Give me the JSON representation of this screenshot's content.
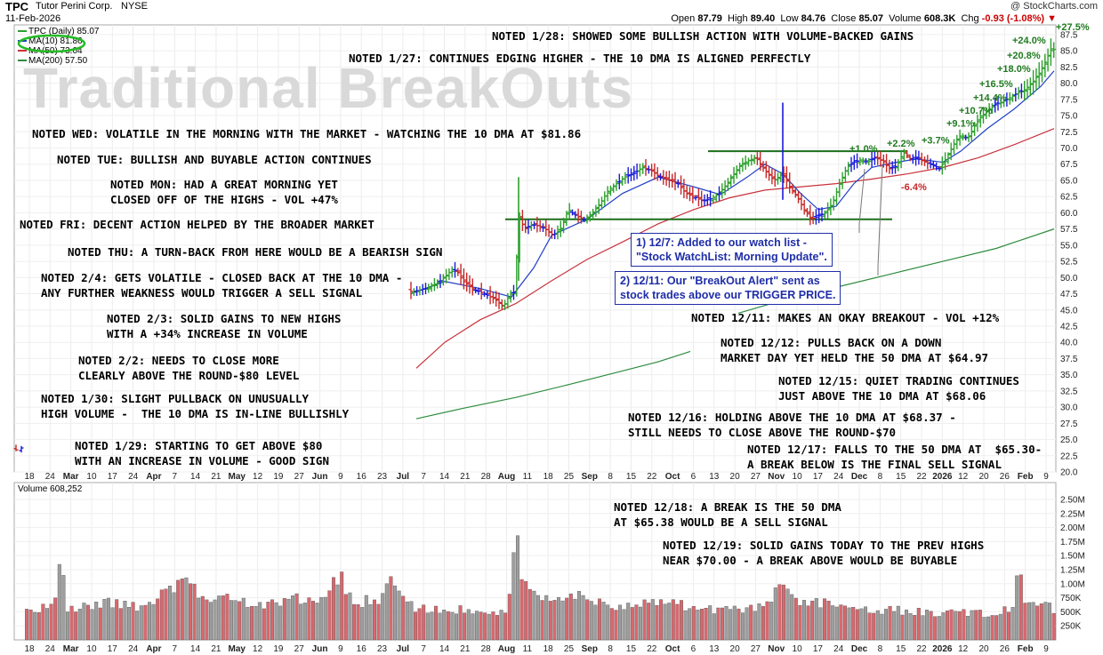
{
  "header": {
    "ticker": "TPC",
    "company": "Tutor Perini Corp.",
    "exchange": "NYSE",
    "date": "11-Feb-2026",
    "copyright": "@ StockCharts.com",
    "open_label": "Open",
    "open": "87.79",
    "high_label": "High",
    "high": "89.40",
    "low_label": "Low",
    "low": "84.76",
    "close_label": "Close",
    "close": "85.07",
    "volume_label": "Volume",
    "volume": "608.3K",
    "chg_label": "Chg",
    "chg": "-0.93 (-1.08%)",
    "chg_arrow": "▼"
  },
  "watermark": "Traditional BreakOuts",
  "legend": {
    "daily": "TPC (Daily) 85.07",
    "ma10": "MA(10) 81.86",
    "ma50": "MA(50) 73.04",
    "ma200": "MA(200) 57.50"
  },
  "colors": {
    "up": "#2ca02c",
    "down": "#c62828",
    "neutral": "#1a1adc",
    "ma10": "#1f3fc8",
    "ma50": "#c8323c",
    "ma200": "#2e8b3e",
    "resistance": "#1b6e1b",
    "vol_up": "#9e9e9e",
    "vol_down": "#d9686e",
    "pct_up": "#1f7a1f",
    "pct_down": "#c62828",
    "circle": "#22bb22"
  },
  "notes": [
    "NOTED 1/28: SHOWED SOME BULLISH ACTION WITH VOLUME-BACKED GAINS",
    "NOTED 1/27: CONTINUES EDGING HIGHER - THE 10 DMA IS ALIGNED PERFECTLY",
    "NOTED WED: VOLATILE IN THE MORNING WITH THE MARKET - WATCHING THE 10 DMA AT $81.86",
    "NOTED TUE: BULLISH AND BUYABLE ACTION CONTINUES",
    "NOTED MON: HAD A GREAT MORNING YET\nCLOSED OFF OF THE HIGHS - VOL +47%",
    "NOTED FRI: DECENT ACTION HELPED BY THE BROADER MARKET",
    "NOTED THU: A TURN-BACK FROM HERE WOULD BE A BEARISH SIGN",
    "NOTED 2/4: GETS VOLATILE - CLOSED BACK AT THE 10 DMA -\nANY FURTHER WEAKNESS WOULD TRIGGER A SELL SIGNAL",
    "NOTED 2/3: SOLID GAINS TO NEW HIGHS\nWITH A +34% INCREASE IN VOLUME",
    "NOTED 2/2: NEEDS TO CLOSE MORE\nCLEARLY ABOVE THE ROUND-$80 LEVEL",
    "NOTED 1/30: SLIGHT PULLBACK ON UNUSUALLY\nHIGH VOLUME -  THE 10 DMA IS IN-LINE BULLISHLY",
    "NOTED 1/29: STARTING TO GET ABOVE $80\nWITH AN INCREASE IN VOLUME - GOOD SIGN",
    "NOTED 12/11: MAKES AN OKAY BREAKOUT - VOL +12%",
    "NOTED 12/12: PULLS BACK ON A DOWN\nMARKET DAY YET HELD THE 50 DMA AT $64.97",
    "NOTED 12/15: QUIET TRADING CONTINUES\nJUST ABOVE THE 10 DMA AT $68.06",
    "NOTED 12/16: HOLDING ABOVE THE 10 DMA AT $68.37 -\nSTILL NEEDS TO CLOSE ABOVE THE ROUND-$70",
    "NOTED 12/17: FALLS TO THE 50 DMA AT  $65.30-\nA BREAK BELOW IS THE FINAL SELL SIGNAL",
    "NOTED 12/18: A BREAK IS THE 50 DMA\nAT $65.38 WOULD BE A SELL SIGNAL",
    "NOTED 12/19: SOLID GAINS TODAY TO THE PREV HIGHS\nNEAR $70.00 - A BREAK ABOVE WOULD BE BUYABLE"
  ],
  "callouts": [
    "1) 12/7: Added to our watch list -\n\"Stock WatchList: Morning Update\".",
    "2) 12/11: Our \"BreakOut Alert\" sent as\nstock trades above our TRIGGER PRICE."
  ],
  "volume_panel": {
    "label": "Volume 608,252",
    "ticks": [
      "2.50M",
      "2.25M",
      "2.00M",
      "1.75M",
      "1.50M",
      "1.25M",
      "1.00M",
      "750K",
      "500K",
      "250K"
    ]
  },
  "chart_data": {
    "type": "bar",
    "subtype": "ohlc_with_volume",
    "ylim": [
      20,
      89
    ],
    "y_ticks": [
      20.0,
      22.5,
      25.0,
      27.5,
      30.0,
      32.5,
      35.0,
      37.5,
      40.0,
      42.5,
      45.0,
      47.5,
      50.0,
      52.5,
      55.0,
      57.5,
      60.0,
      62.5,
      65.0,
      67.5,
      70.0,
      72.5,
      75.0,
      77.5,
      80.0,
      82.5,
      85.0,
      87.5
    ],
    "x_ticks": [
      "18",
      "24",
      "Mar",
      "10",
      "17",
      "24",
      "Apr",
      "7",
      "14",
      "21",
      "May",
      "12",
      "19",
      "27",
      "Jun",
      "9",
      "16",
      "23",
      "Jul",
      "7",
      "14",
      "21",
      "28",
      "Aug",
      "11",
      "18",
      "25",
      "Sep",
      "8",
      "15",
      "22",
      "Oct",
      "6",
      "13",
      "20",
      "27",
      "Nov",
      "10",
      "17",
      "24",
      "Dec",
      "8",
      "15",
      "22",
      "2026",
      "12",
      "20",
      "26",
      "Feb",
      "9"
    ],
    "resistance_levels": [
      69.5,
      59.0
    ],
    "price_path": [
      [
        0,
        23.5
      ],
      [
        2,
        23.0
      ],
      [
        4,
        23.8
      ],
      [
        459,
        47.8
      ],
      [
        470,
        48.0
      ],
      [
        482,
        48.5
      ],
      [
        495,
        49.5
      ],
      [
        505,
        50.8
      ],
      [
        513,
        51.2
      ],
      [
        520,
        49.5
      ],
      [
        532,
        48.2
      ],
      [
        545,
        47.5
      ],
      [
        558,
        46.5
      ],
      [
        566,
        45.5
      ],
      [
        572,
        47.2
      ],
      [
        579,
        47.9
      ],
      [
        583,
        59.5
      ],
      [
        590,
        57.5
      ],
      [
        597,
        58.2
      ],
      [
        605,
        58.0
      ],
      [
        613,
        57.5
      ],
      [
        622,
        56.5
      ],
      [
        630,
        57.5
      ],
      [
        639,
        60.5
      ],
      [
        648,
        59.5
      ],
      [
        657,
        59.0
      ],
      [
        666,
        60.0
      ],
      [
        675,
        61.5
      ],
      [
        684,
        63.5
      ],
      [
        693,
        64.5
      ],
      [
        702,
        65.5
      ],
      [
        712,
        66.0
      ],
      [
        722,
        67.0
      ],
      [
        732,
        66.5
      ],
      [
        742,
        65.5
      ],
      [
        752,
        65.0
      ],
      [
        762,
        64.5
      ],
      [
        771,
        63.0
      ],
      [
        780,
        62.5
      ],
      [
        790,
        61.8
      ],
      [
        800,
        62.2
      ],
      [
        810,
        63.2
      ],
      [
        820,
        65.0
      ],
      [
        830,
        67.0
      ],
      [
        840,
        68.0
      ],
      [
        850,
        68.5
      ],
      [
        860,
        66.5
      ],
      [
        870,
        65.0
      ],
      [
        880,
        66.0
      ],
      [
        888,
        64.0
      ],
      [
        896,
        62.5
      ],
      [
        904,
        60.5
      ],
      [
        912,
        59.0
      ],
      [
        920,
        59.5
      ],
      [
        928,
        60.0
      ],
      [
        936,
        61.5
      ],
      [
        944,
        64.5
      ],
      [
        952,
        67.0
      ],
      [
        960,
        67.8
      ],
      [
        968,
        68.2
      ],
      [
        976,
        67.9
      ],
      [
        984,
        68.5
      ],
      [
        992,
        68.0
      ],
      [
        1000,
        66.8
      ],
      [
        1008,
        67.2
      ],
      [
        1016,
        69.5
      ],
      [
        1024,
        68.2
      ],
      [
        1032,
        68.5
      ],
      [
        1040,
        67.8
      ],
      [
        1048,
        67.5
      ],
      [
        1056,
        66.8
      ],
      [
        1064,
        68.5
      ],
      [
        1072,
        70.5
      ],
      [
        1080,
        72.0
      ],
      [
        1088,
        71.5
      ],
      [
        1096,
        73.5
      ],
      [
        1104,
        75.0
      ],
      [
        1112,
        76.0
      ],
      [
        1120,
        76.8
      ],
      [
        1128,
        77.2
      ],
      [
        1136,
        77.8
      ],
      [
        1144,
        78.5
      ],
      [
        1152,
        79.0
      ],
      [
        1160,
        80.0
      ],
      [
        1168,
        81.5
      ],
      [
        1176,
        83.5
      ],
      [
        1182,
        85.5
      ],
      [
        1186,
        85.07
      ]
    ],
    "spikes": [
      [
        583,
        49.5,
        65.5
      ],
      [
        880,
        62.0,
        77.0
      ]
    ],
    "ma10_path": [
      [
        462,
        47.5
      ],
      [
        500,
        49.4
      ],
      [
        540,
        48.3
      ],
      [
        575,
        47.0
      ],
      [
        600,
        51.5
      ],
      [
        620,
        56.5
      ],
      [
        660,
        59.0
      ],
      [
        700,
        63.0
      ],
      [
        740,
        65.5
      ],
      [
        780,
        64.0
      ],
      [
        810,
        62.8
      ],
      [
        840,
        65.5
      ],
      [
        860,
        67.5
      ],
      [
        880,
        66.0
      ],
      [
        900,
        63.0
      ],
      [
        920,
        60.5
      ],
      [
        940,
        61.0
      ],
      [
        960,
        64.5
      ],
      [
        980,
        67.0
      ],
      [
        1000,
        67.6
      ],
      [
        1030,
        68.3
      ],
      [
        1060,
        67.8
      ],
      [
        1080,
        69.5
      ],
      [
        1110,
        73.0
      ],
      [
        1140,
        76.0
      ],
      [
        1170,
        79.5
      ],
      [
        1185,
        81.9
      ]
    ],
    "ma50_path": [
      [
        468,
        36.0
      ],
      [
        500,
        40.0
      ],
      [
        540,
        43.5
      ],
      [
        580,
        46.0
      ],
      [
        620,
        49.5
      ],
      [
        660,
        52.8
      ],
      [
        700,
        55.5
      ],
      [
        740,
        58.3
      ],
      [
        780,
        60.5
      ],
      [
        820,
        62.3
      ],
      [
        860,
        63.5
      ],
      [
        900,
        64.0
      ],
      [
        940,
        64.5
      ],
      [
        980,
        65.2
      ],
      [
        1020,
        66.0
      ],
      [
        1060,
        67.0
      ],
      [
        1100,
        68.5
      ],
      [
        1140,
        70.5
      ],
      [
        1185,
        73.0
      ]
    ],
    "ma200_path": [
      [
        468,
        28.2
      ],
      [
        520,
        29.8
      ],
      [
        580,
        31.5
      ],
      [
        640,
        33.5
      ],
      [
        700,
        35.6
      ],
      [
        740,
        37.0
      ],
      [
        776,
        38.6
      ]
    ],
    "ma200_path_2": [
      [
        830,
        44.5
      ],
      [
        880,
        46.5
      ],
      [
        940,
        48.5
      ],
      [
        1000,
        50.5
      ],
      [
        1060,
        52.5
      ],
      [
        1120,
        54.5
      ],
      [
        1185,
        57.5
      ]
    ],
    "pct_labels": [
      {
        "text": "+27.5%",
        "x": 1187,
        "y": 88.2,
        "color": "up"
      },
      {
        "text": "+24.0%",
        "x": 1138,
        "y": 86.1,
        "color": "up"
      },
      {
        "text": "+20.8%",
        "x": 1132,
        "y": 83.8,
        "color": "up"
      },
      {
        "text": "+18.0%",
        "x": 1121,
        "y": 81.7,
        "color": "up"
      },
      {
        "text": "+16.5%",
        "x": 1101,
        "y": 79.4,
        "color": "up"
      },
      {
        "text": "+14.4%",
        "x": 1094,
        "y": 77.3,
        "color": "up"
      },
      {
        "text": "+10.7%",
        "x": 1078,
        "y": 75.3,
        "color": "up"
      },
      {
        "text": "+9.1%",
        "x": 1064,
        "y": 73.3,
        "color": "up"
      },
      {
        "text": "+3.7%",
        "x": 1036,
        "y": 70.7,
        "color": "up"
      },
      {
        "text": "+2.2%",
        "x": 997,
        "y": 70.2,
        "color": "up"
      },
      {
        "text": "+1.0%",
        "x": 955,
        "y": 69.4,
        "color": "up"
      },
      {
        "text": "-6.4%",
        "x": 1013,
        "y": 63.5,
        "color": "down"
      }
    ],
    "volume_ylim": [
      0,
      2800000
    ],
    "volume_x_range": [
      30,
      1186
    ],
    "volume_profile": [
      [
        30,
        550000
      ],
      [
        60,
        700000
      ],
      [
        70,
        1850000
      ],
      [
        75,
        650000
      ],
      [
        100,
        720000
      ],
      [
        130,
        760000
      ],
      [
        160,
        700000
      ],
      [
        190,
        1000000
      ],
      [
        210,
        1230000
      ],
      [
        230,
        730000
      ],
      [
        260,
        850000
      ],
      [
        290,
        720000
      ],
      [
        330,
        830000
      ],
      [
        370,
        930000
      ],
      [
        380,
        1350000
      ],
      [
        400,
        760000
      ],
      [
        430,
        900000
      ],
      [
        440,
        1350000
      ],
      [
        460,
        700000
      ],
      [
        500,
        620000
      ],
      [
        540,
        620000
      ],
      [
        570,
        560000
      ],
      [
        575,
        1500000
      ],
      [
        580,
        2750000
      ],
      [
        586,
        1100000
      ],
      [
        620,
        760000
      ],
      [
        650,
        880000
      ],
      [
        680,
        720000
      ],
      [
        720,
        760000
      ],
      [
        760,
        720000
      ],
      [
        800,
        640000
      ],
      [
        830,
        620000
      ],
      [
        860,
        700000
      ],
      [
        880,
        1150000
      ],
      [
        900,
        820000
      ],
      [
        930,
        760000
      ],
      [
        960,
        650000
      ],
      [
        1000,
        620000
      ],
      [
        1040,
        560000
      ],
      [
        1080,
        560000
      ],
      [
        1120,
        560000
      ],
      [
        1140,
        680000
      ],
      [
        1146,
        1820000
      ],
      [
        1150,
        880000
      ],
      [
        1170,
        760000
      ],
      [
        1186,
        608252
      ]
    ]
  }
}
